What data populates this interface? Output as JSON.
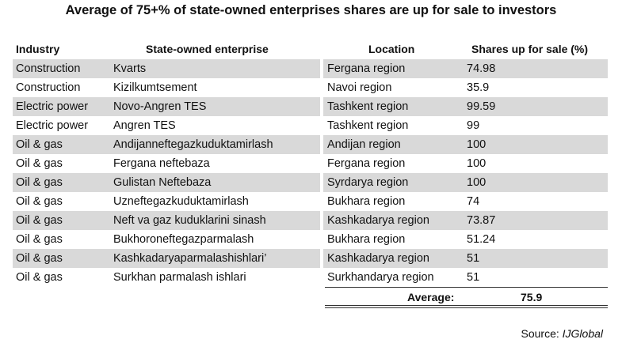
{
  "title": "Average of 75+% of state-owned enterprises shares are up for sale to investors",
  "headers": {
    "industry": "Industry",
    "enterprise": "State-owned enterprise",
    "location": "Location",
    "shares": "Shares up for sale (%)"
  },
  "rows": [
    {
      "industry": "Construction",
      "enterprise": "Kvarts",
      "location": "Fergana region",
      "shares": "74.98"
    },
    {
      "industry": "Construction",
      "enterprise": "Kizilkumtsement",
      "location": "Navoi region",
      "shares": "35.9"
    },
    {
      "industry": "Electric power",
      "enterprise": "Novo-Angren TES",
      "location": "Tashkent region",
      "shares": "99.59"
    },
    {
      "industry": "Electric power",
      "enterprise": "Angren TES",
      "location": "Tashkent region",
      "shares": "99"
    },
    {
      "industry": "Oil & gas",
      "enterprise": "Andijanneftegazkuduktamirlash",
      "location": "Andijan region",
      "shares": "100"
    },
    {
      "industry": "Oil & gas",
      "enterprise": "Fergana neftebaza",
      "location": "Fergana region",
      "shares": "100"
    },
    {
      "industry": "Oil & gas",
      "enterprise": "Gulistan Neftebaza",
      "location": "Syrdarya region",
      "shares": "100"
    },
    {
      "industry": "Oil & gas",
      "enterprise": "Uzneftegazkuduktamirlash",
      "location": "Bukhara region",
      "shares": "74"
    },
    {
      "industry": "Oil & gas",
      "enterprise": "Neft va gaz kuduklarini sinash",
      "location": "Kashkadarya region",
      "shares": "73.87"
    },
    {
      "industry": "Oil & gas",
      "enterprise": "Bukhoroneftegazparmalash",
      "location": "Bukhara region",
      "shares": "51.24"
    },
    {
      "industry": "Oil & gas",
      "enterprise": "Kashkadaryaparmalashishlari’",
      "location": "Kashkadarya region",
      "shares": "51"
    },
    {
      "industry": "Oil & gas",
      "enterprise": "Surkhan parmalash ishlari",
      "location": "Surkhandarya region",
      "shares": "51"
    }
  ],
  "average": {
    "label": "Average:",
    "value": "75.9"
  },
  "source": {
    "prefix": "Source: ",
    "name": "IJGlobal"
  },
  "colors": {
    "row_shade": "#d9d9d9",
    "text": "#111111"
  }
}
